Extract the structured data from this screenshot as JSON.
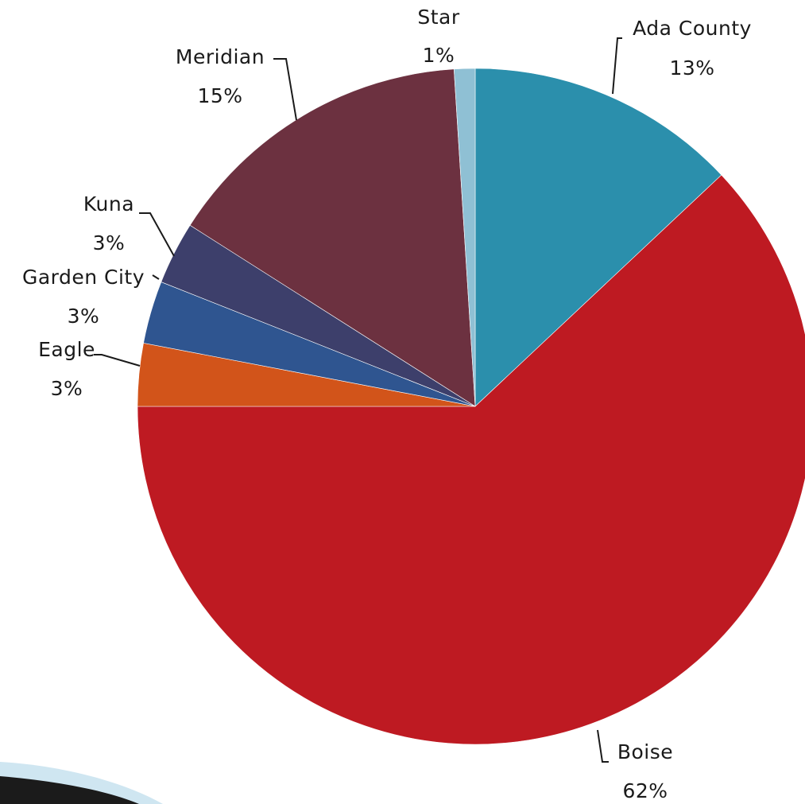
{
  "chart_data": {
    "type": "pie",
    "title": "",
    "start_angle_deg": 0,
    "direction": "clockwise",
    "slices": [
      {
        "name": "Ada County",
        "value": 13,
        "label": "13%",
        "color": "#2b8fac"
      },
      {
        "name": "Boise",
        "value": 62,
        "label": "62%",
        "color": "#be1a22"
      },
      {
        "name": "Eagle",
        "value": 3,
        "label": "3%",
        "color": "#d2541a"
      },
      {
        "name": "Garden City",
        "value": 3,
        "label": "3%",
        "color": "#2f5590"
      },
      {
        "name": "Kuna",
        "value": 3,
        "label": "3%",
        "color": "#3d3f6b"
      },
      {
        "name": "Meridian",
        "value": 15,
        "label": "15%",
        "color": "#6c3140"
      },
      {
        "name": "Star",
        "value": 1,
        "label": "1%",
        "color": "#8fc0d4"
      }
    ],
    "legend": "none",
    "data_labels": "outside-with-leader-lines"
  },
  "decor": {
    "accent_color": "#1b1b1b",
    "accent_light": "#cfe6f1"
  }
}
